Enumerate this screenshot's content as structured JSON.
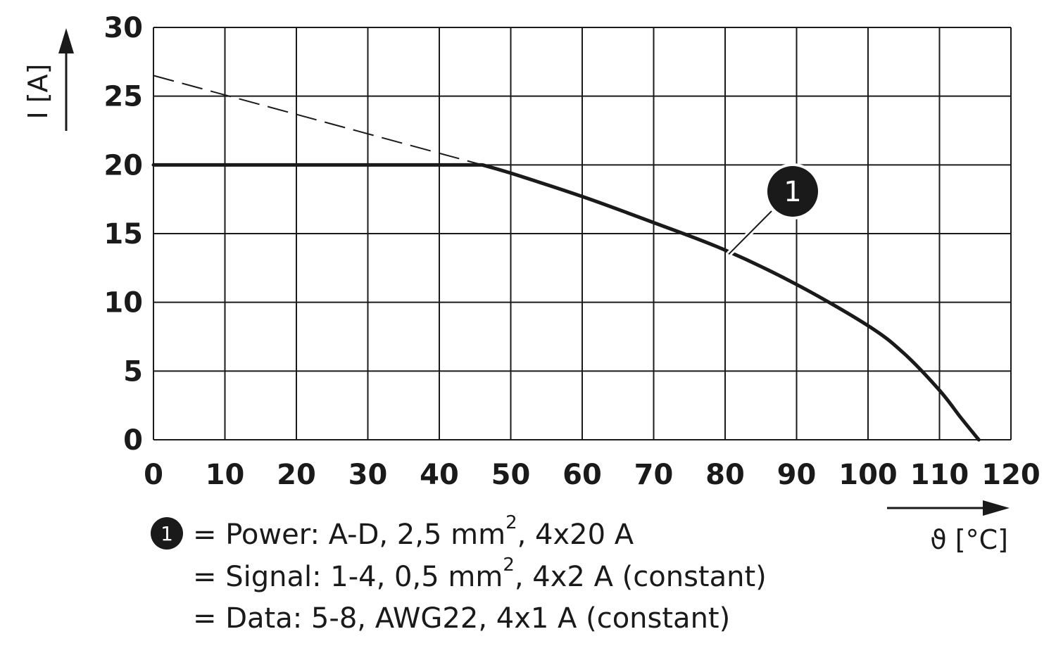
{
  "chart_data": {
    "type": "line",
    "xlabel": "ϑ [°C]",
    "ylabel": "I [A]",
    "xlim": [
      0,
      120
    ],
    "ylim": [
      0,
      30
    ],
    "x_ticks": [
      "0",
      "10",
      "20",
      "30",
      "40",
      "50",
      "60",
      "70",
      "80",
      "90",
      "100",
      "110",
      "120"
    ],
    "y_ticks": [
      "0",
      "5",
      "10",
      "15",
      "20",
      "25",
      "30"
    ],
    "grid": true,
    "series": [
      {
        "marker": "1",
        "style": "solid",
        "x": [
          0,
          46,
          50,
          60,
          70,
          80,
          90,
          100,
          105,
          110,
          113,
          115.5
        ],
        "y": [
          20,
          20,
          19.4,
          17.7,
          15.8,
          13.8,
          11.3,
          8.3,
          6.3,
          3.6,
          1.6,
          0
        ]
      },
      {
        "style": "dashed",
        "x": [
          0,
          46
        ],
        "y": [
          26.5,
          20
        ]
      }
    ],
    "annotations": [
      {
        "label": "1",
        "x": 80.5,
        "y": 13.5
      }
    ],
    "legend": [
      {
        "marker": "1",
        "text": "= Power: A-D, 2,5 mm",
        "sup": "2",
        "tail": ", 4x20 A"
      },
      {
        "marker": "",
        "text": "= Signal: 1-4, 0,5 mm",
        "sup": "2",
        "tail": ", 4x2 A (constant)"
      },
      {
        "marker": "",
        "text": "= Data: 5-8, AWG22, 4x1 A (constant)",
        "sup": "",
        "tail": ""
      }
    ]
  }
}
